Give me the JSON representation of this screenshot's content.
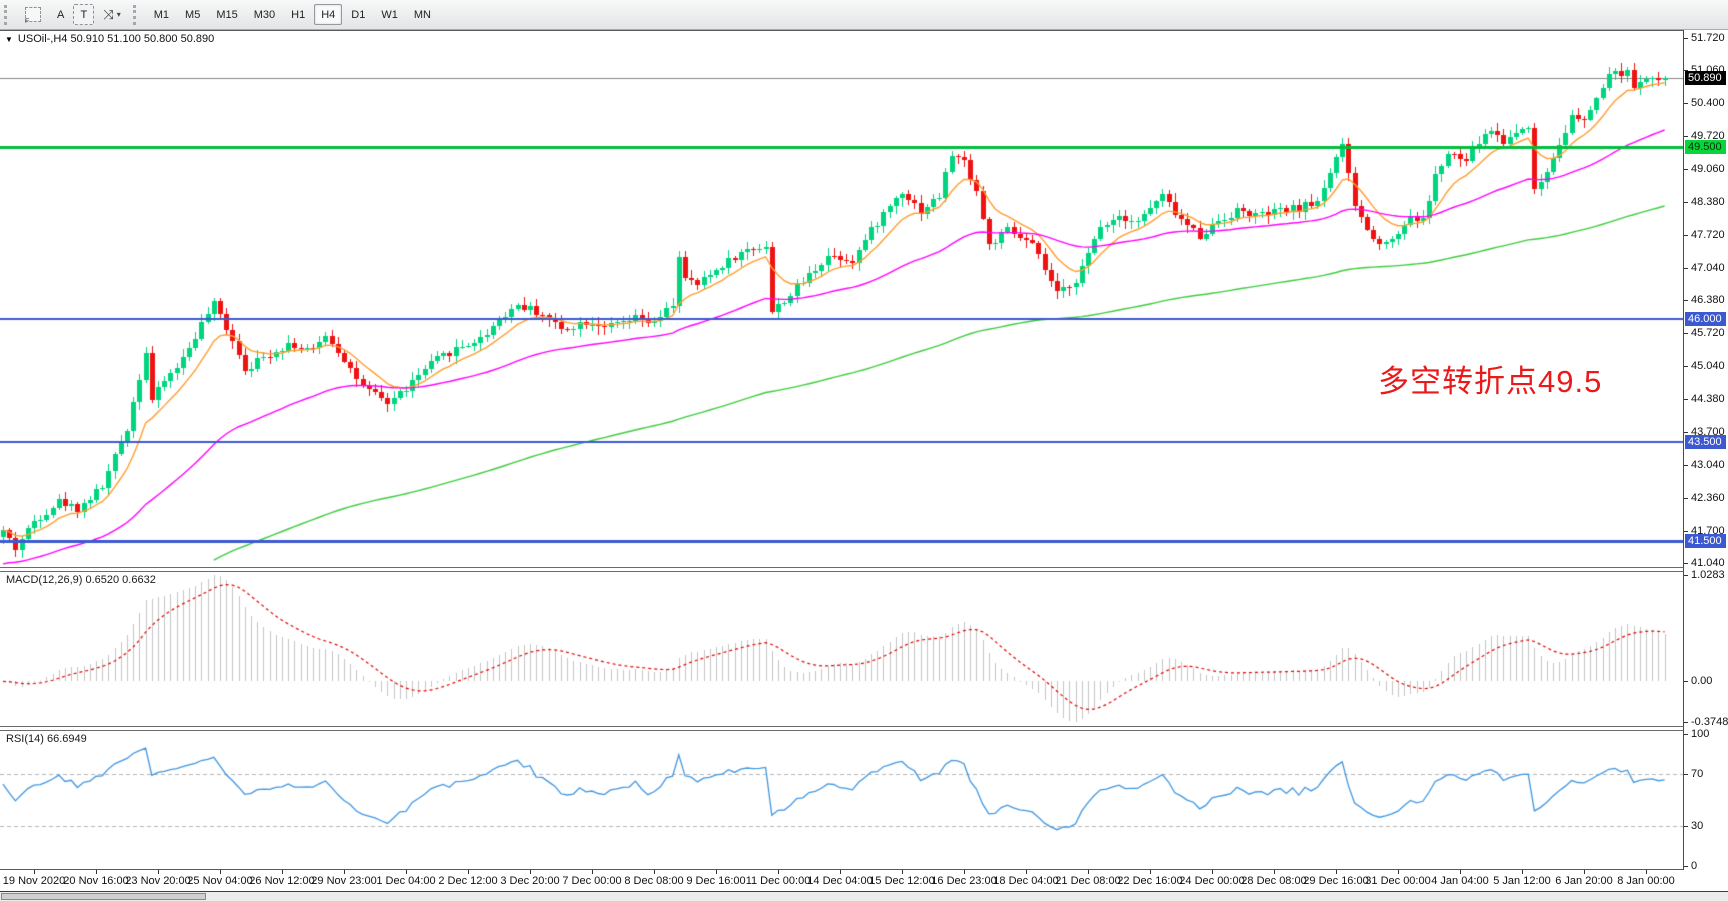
{
  "toolbar": {
    "pointer_tool_label": "F",
    "text_tool_a": "A",
    "text_tool_t": "T",
    "cursor_dropdown_arrow": "▾",
    "timeframes": [
      "M1",
      "M5",
      "M15",
      "M30",
      "H1",
      "H4",
      "D1",
      "W1",
      "MN"
    ],
    "active_timeframe": "H4"
  },
  "chart": {
    "title": "USOil-,H4  50.910 51.100 50.800 50.890",
    "title_triangle": "▼",
    "symbol": "USOil-",
    "period": "H4",
    "annotation": {
      "text": "多空转折点49.5",
      "color": "#ea1a1a"
    },
    "current_price_badge": "50.890",
    "price_axis_labels": [
      "51.720",
      "51.060",
      "50.400",
      "49.720",
      "49.060",
      "48.380",
      "47.720",
      "47.040",
      "46.380",
      "45.720",
      "45.040",
      "44.380",
      "43.700",
      "43.040",
      "42.360",
      "41.700",
      "41.040"
    ]
  },
  "macd_panel": {
    "label": "MACD(12,26,9) 0.6520 0.6632",
    "scale": [
      "1.0283",
      "0.00",
      "-0.3748"
    ]
  },
  "rsi_panel": {
    "label": "RSI(14) 66.6949",
    "scale": [
      "100",
      "70",
      "30",
      "0"
    ]
  },
  "time_axis_labels": [
    "19 Nov 2020",
    "20 Nov 16:00",
    "23 Nov 20:00",
    "25 Nov 04:00",
    "26 Nov 12:00",
    "29 Nov 23:00",
    "1 Dec 04:00",
    "2 Dec 12:00",
    "3 Dec 20:00",
    "7 Dec 00:00",
    "8 Dec 08:00",
    "9 Dec 16:00",
    "11 Dec 00:00",
    "14 Dec 04:00",
    "15 Dec 12:00",
    "16 Dec 23:00",
    "18 Dec 04:00",
    "21 Dec 08:00",
    "22 Dec 16:00",
    "24 Dec 00:00",
    "28 Dec 08:00",
    "29 Dec 16:00",
    "31 Dec 00:00",
    "4 Jan 04:00",
    "5 Jan 12:00",
    "6 Jan 20:00",
    "8 Jan 00:00"
  ],
  "colors": {
    "candle_up": "#00d47f",
    "candle_down": "#ee1212",
    "ma_fast_orange": "#ff9d2e",
    "ma_mid_magenta": "#ff00ff",
    "ma_slow_green": "#3ecb3e",
    "level_blue": "#3c59d1",
    "level_green": "#00bf3f",
    "badge_green_bg": "#08d53e",
    "badge_black_bg": "#000000",
    "current_price_line": "#848484",
    "macd_histogram": "#c4c4c4",
    "macd_signal_red": "#e00606",
    "rsi_line_blue": "#3f96e0"
  },
  "chart_data": {
    "type": "candlestick",
    "symbol": "USOil-",
    "timeframe": "H4",
    "ohlc_current": {
      "open": 50.91,
      "high": 51.1,
      "low": 50.8,
      "close": 50.89
    },
    "bars": 269,
    "price_range_visible": [
      41.04,
      51.72
    ],
    "price_path": [
      [
        0,
        41.7
      ],
      [
        2,
        41.35
      ],
      [
        5,
        41.9
      ],
      [
        9,
        42.3
      ],
      [
        12,
        42.15
      ],
      [
        16,
        42.6
      ],
      [
        20,
        43.8
      ],
      [
        23,
        45.35
      ],
      [
        24,
        44.35
      ],
      [
        26,
        44.75
      ],
      [
        29,
        45.2
      ],
      [
        32,
        45.9
      ],
      [
        34,
        46.3
      ],
      [
        37,
        45.6
      ],
      [
        39,
        45.0
      ],
      [
        43,
        45.3
      ],
      [
        46,
        45.5
      ],
      [
        50,
        45.35
      ],
      [
        52,
        45.7
      ],
      [
        55,
        45.2
      ],
      [
        58,
        44.6
      ],
      [
        62,
        44.3
      ],
      [
        65,
        44.6
      ],
      [
        69,
        45.1
      ],
      [
        73,
        45.4
      ],
      [
        77,
        45.6
      ],
      [
        80,
        46.0
      ],
      [
        83,
        46.3
      ],
      [
        87,
        46.1
      ],
      [
        90,
        45.8
      ],
      [
        94,
        45.95
      ],
      [
        98,
        45.85
      ],
      [
        102,
        46.0
      ],
      [
        105,
        45.9
      ],
      [
        108,
        46.3
      ],
      [
        109,
        47.3
      ],
      [
        110,
        46.8
      ],
      [
        112,
        46.7
      ],
      [
        114,
        46.9
      ],
      [
        117,
        47.2
      ],
      [
        120,
        47.4
      ],
      [
        123,
        47.5
      ],
      [
        124,
        46.15
      ],
      [
        127,
        46.5
      ],
      [
        130,
        46.9
      ],
      [
        133,
        47.3
      ],
      [
        137,
        47.2
      ],
      [
        140,
        47.8
      ],
      [
        143,
        48.3
      ],
      [
        145,
        48.6
      ],
      [
        148,
        48.2
      ],
      [
        151,
        48.5
      ],
      [
        153,
        49.35
      ],
      [
        155,
        49.2
      ],
      [
        157,
        48.6
      ],
      [
        159,
        47.5
      ],
      [
        162,
        47.8
      ],
      [
        166,
        47.5
      ],
      [
        168,
        47.0
      ],
      [
        170,
        46.5
      ],
      [
        173,
        46.8
      ],
      [
        175,
        47.3
      ],
      [
        177,
        47.9
      ],
      [
        180,
        48.1
      ],
      [
        183,
        48.0
      ],
      [
        187,
        48.5
      ],
      [
        190,
        48.0
      ],
      [
        193,
        47.7
      ],
      [
        196,
        48.0
      ],
      [
        199,
        48.2
      ],
      [
        203,
        48.1
      ],
      [
        206,
        48.2
      ],
      [
        209,
        48.25
      ],
      [
        212,
        48.4
      ],
      [
        215,
        49.3
      ],
      [
        216,
        49.5
      ],
      [
        218,
        48.3
      ],
      [
        221,
        47.6
      ],
      [
        224,
        47.6
      ],
      [
        227,
        48.1
      ],
      [
        229,
        48.0
      ],
      [
        231,
        48.9
      ],
      [
        233,
        49.35
      ],
      [
        236,
        49.2
      ],
      [
        238,
        49.6
      ],
      [
        240,
        49.85
      ],
      [
        242,
        49.6
      ],
      [
        244,
        49.8
      ],
      [
        246,
        49.95
      ],
      [
        247,
        48.6
      ],
      [
        249,
        49.0
      ],
      [
        251,
        49.6
      ],
      [
        253,
        50.1
      ],
      [
        255,
        50.0
      ],
      [
        257,
        50.5
      ],
      [
        259,
        50.9
      ],
      [
        260,
        51.1
      ],
      [
        261,
        50.9
      ],
      [
        262,
        51.0
      ],
      [
        263,
        50.7
      ],
      [
        264,
        50.9
      ],
      [
        265,
        50.8
      ],
      [
        266,
        50.9
      ],
      [
        267,
        50.85
      ],
      [
        268,
        50.89
      ]
    ],
    "horizontal_levels": [
      {
        "price": 49.5,
        "label": "49.500",
        "color": "#00bf3f",
        "width": 3,
        "badge_bg": "#08d53e",
        "badge_fg": "#003300"
      },
      {
        "price": 46.0,
        "label": "46.000",
        "color": "#3c59d1",
        "width": 2,
        "badge_bg": "#3c59d1",
        "badge_fg": "#ffffff"
      },
      {
        "price": 43.5,
        "label": "43.500",
        "color": "#3c59d1",
        "width": 2,
        "badge_bg": "#3c59d1",
        "badge_fg": "#ffffff"
      },
      {
        "price": 41.5,
        "label": "41.500",
        "color": "#3c59d1",
        "width": 3,
        "badge_bg": "#3c59d1",
        "badge_fg": "#ffffff"
      }
    ],
    "current_price": 50.89,
    "moving_averages": [
      {
        "name": "fast",
        "color": "#ff9d2e",
        "period": 9
      },
      {
        "name": "mid",
        "color": "#ff00ff",
        "period": 45
      },
      {
        "name": "slow",
        "color": "#3ecb3e",
        "period": 150
      }
    ],
    "indicators": [
      {
        "type": "MACD",
        "params": [
          12,
          26,
          9
        ],
        "current_main": 0.652,
        "current_signal": 0.6632,
        "scale_marks": [
          1.0283,
          0.0,
          -0.3748
        ]
      },
      {
        "type": "RSI",
        "params": [
          14
        ],
        "current": 66.6949,
        "levels": [
          70,
          30
        ],
        "scale_marks": [
          100,
          70,
          30,
          0
        ]
      }
    ]
  }
}
